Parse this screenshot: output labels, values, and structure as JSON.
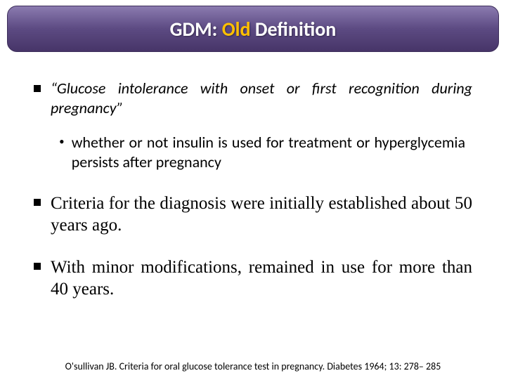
{
  "title": {
    "prefix": "GDM: ",
    "highlight": "Old",
    "suffix": " Definition",
    "bg_gradient_top": "#8b7bb0",
    "bg_gradient_mid": "#5c4a82",
    "bg_gradient_bottom": "#473568",
    "border_color": "#3d2e5a",
    "highlight_color": "#ffc000",
    "text_color": "#ffffff"
  },
  "bullets": [
    {
      "level": 1,
      "marker": "square",
      "text": "“Glucose intolerance with onset or first recognition during pregnancy”",
      "font": "calibri-italic",
      "fontsize": 22
    },
    {
      "level": 2,
      "marker": "dot",
      "text": "whether or not insulin is used for treatment or hyperglycemia persists after pregnancy",
      "font": "calibri",
      "fontsize": 22
    },
    {
      "level": 1,
      "marker": "square",
      "text": "Criteria for the diagnosis were initially established about 50 years ago.",
      "font": "times",
      "fontsize": 25
    },
    {
      "level": 1,
      "marker": "square",
      "text": "With minor modifications, remained in use for more than 40 years.",
      "font": "times",
      "fontsize": 25
    }
  ],
  "citation": "O'sullivan JB. Criteria for oral glucose tolerance test in pregnancy. Diabetes 1964; 13: 278– 285"
}
